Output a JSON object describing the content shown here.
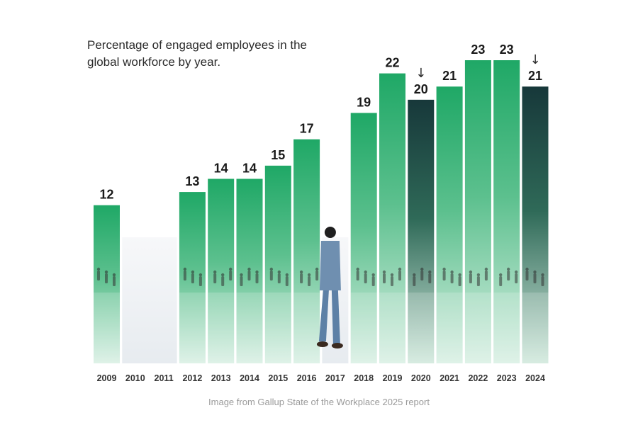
{
  "chart_data": {
    "type": "bar",
    "title": "Percentage of engaged employees in the global workforce by year.",
    "xlabel": "",
    "ylabel": "",
    "ylim": [
      0,
      23
    ],
    "grid": false,
    "categories": [
      "2009",
      "2010",
      "2011",
      "2012",
      "2013",
      "2014",
      "2015",
      "2016",
      "2017",
      "2018",
      "2019",
      "2020",
      "2021",
      "2022",
      "2023",
      "2024"
    ],
    "values": [
      12,
      null,
      null,
      13,
      14,
      14,
      15,
      17,
      null,
      19,
      22,
      20,
      21,
      23,
      23,
      21
    ],
    "decline_years": [
      "2020",
      "2024"
    ],
    "decline_marker": "↓",
    "colors": {
      "bar_top": "#1fa866",
      "bar_mid": "#5cc08e",
      "bar_bottom": "#d8efe3",
      "decline_top": "#17383a",
      "decline_mid": "#2f6a58",
      "gap_fill": "#eef1f4",
      "label": "#1a1a1a",
      "tick": "#333333"
    }
  },
  "caption": "Image from Gallup State of the Workplace 2025 report"
}
